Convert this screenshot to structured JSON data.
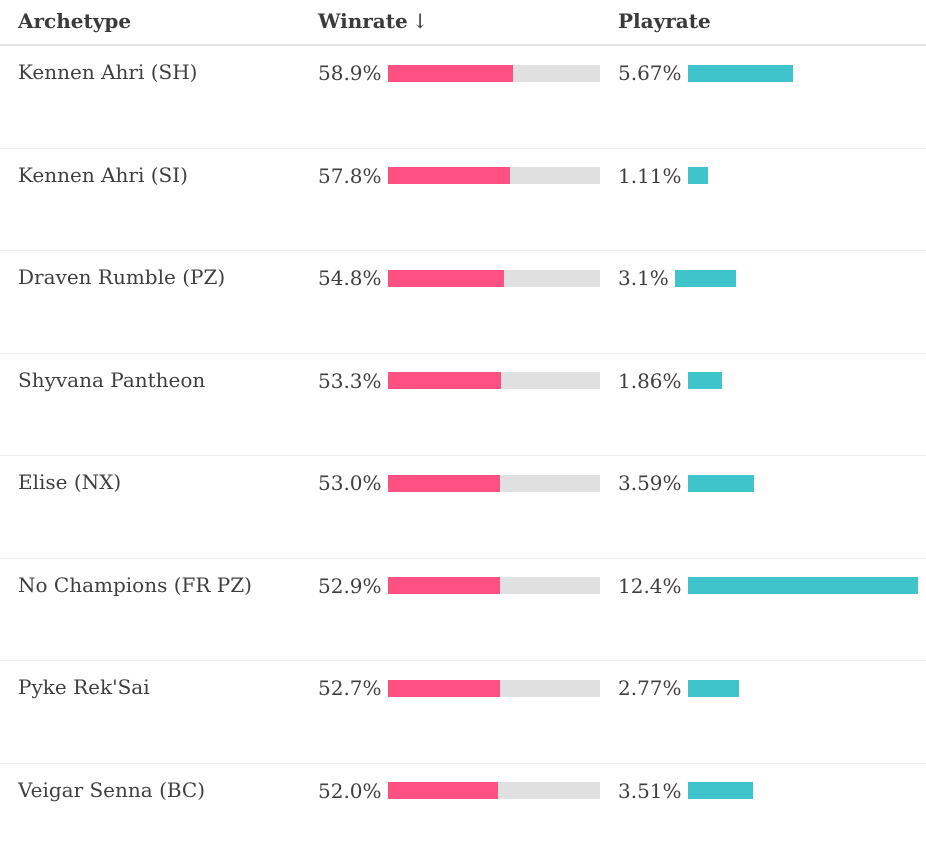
{
  "header": {
    "archetype": "Archetype",
    "winrate": "Winrate",
    "sort_arrow": "↓",
    "playrate": "Playrate"
  },
  "accent_colors": {
    "winrate_bar": "#ff5083",
    "winrate_track": "#e0e0e0",
    "playrate_bar": "#40c4cb"
  },
  "rows": [
    {
      "name": "Kennen Ahri (SH)",
      "winrate": "58.9%",
      "playrate": "5.67%",
      "win_fill": 0.589,
      "play_fill": 0.4573
    },
    {
      "name": "Kennen Ahri (SI)",
      "winrate": "57.8%",
      "playrate": "1.11%",
      "win_fill": 0.578,
      "play_fill": 0.0895
    },
    {
      "name": "Draven Rumble (PZ)",
      "winrate": "54.8%",
      "playrate": "3.1%",
      "win_fill": 0.548,
      "play_fill": 0.25
    },
    {
      "name": "Shyvana Pantheon",
      "winrate": "53.3%",
      "playrate": "1.86%",
      "win_fill": 0.533,
      "play_fill": 0.15
    },
    {
      "name": "Elise (NX)",
      "winrate": "53.0%",
      "playrate": "3.59%",
      "win_fill": 0.53,
      "play_fill": 0.2895
    },
    {
      "name": "No Champions (FR PZ)",
      "winrate": "52.9%",
      "playrate": "12.4%",
      "win_fill": 0.529,
      "play_fill": 1.0
    },
    {
      "name": "Pyke Rek'Sai",
      "winrate": "52.7%",
      "playrate": "2.77%",
      "win_fill": 0.527,
      "play_fill": 0.2234
    },
    {
      "name": "Veigar Senna (BC)",
      "winrate": "52.0%",
      "playrate": "3.51%",
      "win_fill": 0.52,
      "play_fill": 0.2831
    }
  ]
}
